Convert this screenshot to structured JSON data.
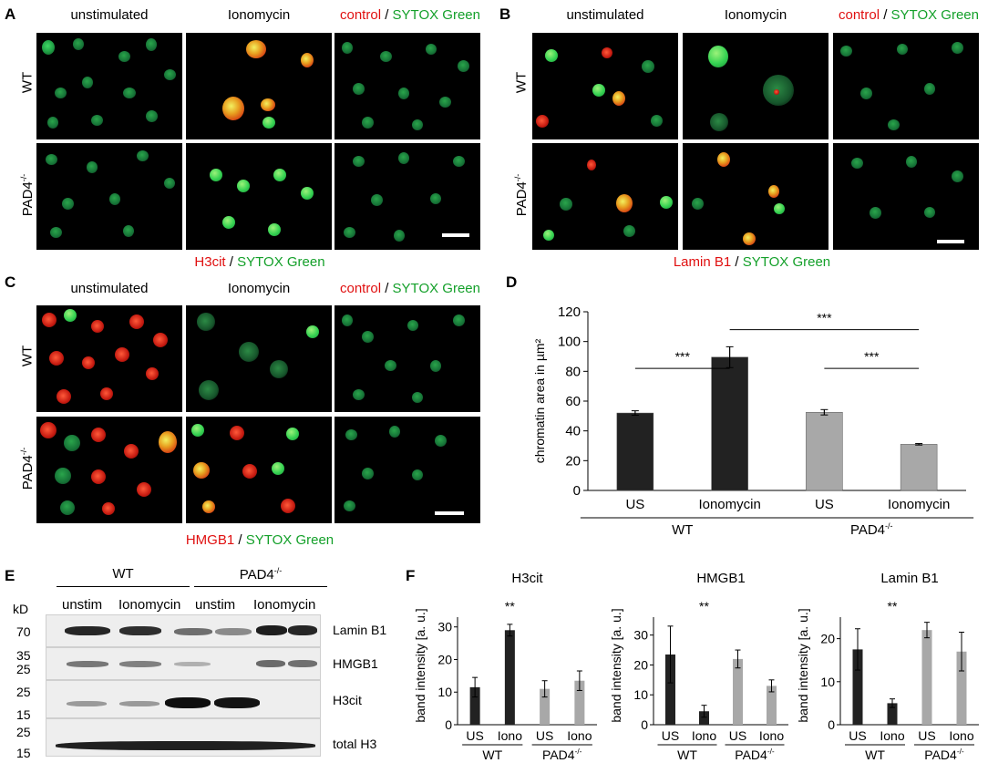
{
  "panels": {
    "A": {
      "label": "A",
      "columns": [
        "unstimulated",
        "Ionomycin"
      ],
      "control_word": "control",
      "sytox": "SYTOX Green",
      "rows": [
        "WT",
        "PAD4-/-"
      ],
      "stain": "H3cit"
    },
    "B": {
      "label": "B",
      "columns": [
        "unstimulated",
        "Ionomycin"
      ],
      "control_word": "control",
      "sytox": "SYTOX Green",
      "rows": [
        "WT",
        "PAD4-/-"
      ],
      "stain": "Lamin B1"
    },
    "C": {
      "label": "C",
      "columns": [
        "unstimulated",
        "Ionomycin"
      ],
      "control_word": "control",
      "sytox": "SYTOX Green",
      "rows": [
        "WT",
        "PAD4-/-"
      ],
      "stain": "HMGB1"
    },
    "D": {
      "label": "D"
    },
    "E": {
      "label": "E",
      "groups": [
        "WT",
        "PAD4-/-"
      ],
      "subgroups": [
        "unstim",
        "Ionomycin",
        "unstim",
        "Ionomycin"
      ],
      "kd_title": "kD",
      "kd_marks": [
        "70",
        "35",
        "25",
        "25",
        "15",
        "25",
        "15"
      ],
      "proteins": [
        "Lamin B1",
        "HMGB1",
        "H3cit",
        "total H3"
      ]
    },
    "F": {
      "label": "F"
    }
  },
  "slash": "/",
  "colors": {
    "red": "#e01010",
    "green": "#14a02a",
    "dark_bar": "#222222",
    "light_bar": "#a8a8a8"
  },
  "chart_data": [
    {
      "type": "bar",
      "panel": "D",
      "ylabel": "chromatin area in µm²",
      "ylim": [
        0,
        120
      ],
      "yticks": [
        0,
        20,
        40,
        60,
        80,
        100,
        120
      ],
      "categories": [
        "US",
        "Ionomycin",
        "US",
        "Ionomycin"
      ],
      "groups": [
        "WT",
        "PAD4-/-"
      ],
      "values": [
        52,
        89.5,
        52.5,
        31
      ],
      "errors": [
        1.5,
        7,
        1.8,
        0.5
      ],
      "bar_colors": [
        "#222222",
        "#222222",
        "#a8a8a8",
        "#a8a8a8"
      ],
      "significance": [
        "***",
        "***",
        "***"
      ]
    },
    {
      "type": "bar",
      "panel": "F",
      "title": "H3cit",
      "ylabel": "band intensity [a. u.]",
      "ylim": [
        0,
        33
      ],
      "yticks": [
        0,
        10,
        20,
        30
      ],
      "categories": [
        "US",
        "Iono",
        "US",
        "Iono"
      ],
      "groups": [
        "WT",
        "PAD4-/-"
      ],
      "values": [
        11.5,
        29,
        11,
        13.5
      ],
      "errors": [
        3,
        1.8,
        2.5,
        3
      ],
      "significance": "**"
    },
    {
      "type": "bar",
      "panel": "F",
      "title": "HMGB1",
      "ylabel": "band intensity [a. u.]",
      "ylim": [
        0,
        36
      ],
      "yticks": [
        0,
        10,
        20,
        30
      ],
      "categories": [
        "US",
        "Iono",
        "US",
        "Iono"
      ],
      "groups": [
        "WT",
        "PAD4-/-"
      ],
      "values": [
        23.5,
        4.5,
        22,
        13
      ],
      "errors": [
        9.5,
        2,
        3,
        2
      ],
      "significance": "**"
    },
    {
      "type": "bar",
      "panel": "F",
      "title": "Lamin B1",
      "ylabel": "band intensity [a. u.]",
      "ylim": [
        0,
        25
      ],
      "yticks": [
        0,
        10,
        20
      ],
      "categories": [
        "US",
        "Iono",
        "US",
        "Iono"
      ],
      "groups": [
        "WT",
        "PAD4-/-"
      ],
      "values": [
        17.5,
        5,
        22,
        17
      ],
      "errors": [
        4.8,
        1,
        1.8,
        4.5
      ],
      "significance": "**"
    }
  ]
}
